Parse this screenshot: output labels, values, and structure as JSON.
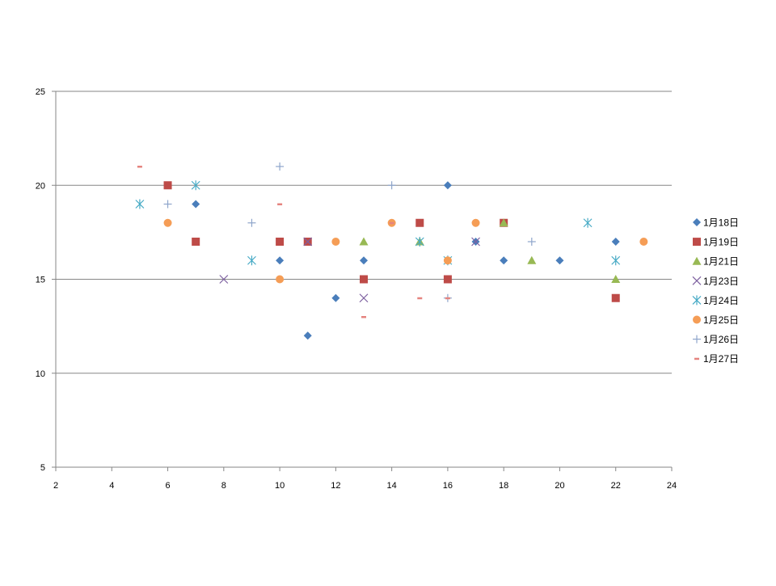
{
  "chart_data": {
    "type": "scatter",
    "title": "",
    "xlabel": "",
    "ylabel": "",
    "xlim": [
      2,
      24
    ],
    "ylim": [
      5,
      25
    ],
    "x_ticks": [
      2,
      4,
      6,
      8,
      10,
      12,
      14,
      16,
      18,
      20,
      22,
      24
    ],
    "y_ticks": [
      5,
      10,
      15,
      20,
      25
    ],
    "grid": "horizontal-major",
    "legend_position": "right",
    "series": [
      {
        "name": "1月18日",
        "marker": "diamond",
        "color": "#4A7EBB",
        "points": [
          [
            7,
            19
          ],
          [
            10,
            16
          ],
          [
            11,
            12
          ],
          [
            12,
            14
          ],
          [
            13,
            16
          ],
          [
            16,
            20
          ],
          [
            17,
            17
          ],
          [
            18,
            16
          ],
          [
            20,
            16
          ],
          [
            22,
            17
          ]
        ]
      },
      {
        "name": "1月19日",
        "marker": "square",
        "color": "#BE4B48",
        "points": [
          [
            6,
            20
          ],
          [
            7,
            17
          ],
          [
            10,
            17
          ],
          [
            11,
            17
          ],
          [
            13,
            15
          ],
          [
            15,
            18
          ],
          [
            16,
            15
          ],
          [
            18,
            18
          ],
          [
            22,
            14
          ]
        ]
      },
      {
        "name": "1月21日",
        "marker": "triangle",
        "color": "#98B954",
        "points": [
          [
            13,
            17
          ],
          [
            15,
            17
          ],
          [
            18,
            18
          ],
          [
            19,
            16
          ],
          [
            22,
            15
          ]
        ]
      },
      {
        "name": "1月23日",
        "marker": "x",
        "color": "#7D60A0",
        "points": [
          [
            8,
            15
          ],
          [
            11,
            17
          ],
          [
            13,
            14
          ],
          [
            17,
            17
          ]
        ]
      },
      {
        "name": "1月24日",
        "marker": "star",
        "color": "#46AAC5",
        "points": [
          [
            5,
            19
          ],
          [
            7,
            20
          ],
          [
            9,
            16
          ],
          [
            15,
            17
          ],
          [
            16,
            16
          ],
          [
            21,
            18
          ],
          [
            22,
            16
          ]
        ]
      },
      {
        "name": "1月25日",
        "marker": "circle",
        "color": "#F59D56",
        "points": [
          [
            6,
            18
          ],
          [
            10,
            15
          ],
          [
            12,
            17
          ],
          [
            14,
            18
          ],
          [
            16,
            16
          ],
          [
            17,
            18
          ],
          [
            23,
            17
          ]
        ]
      },
      {
        "name": "1月26日",
        "marker": "plus",
        "color": "#8EA5CB",
        "points": [
          [
            6,
            19
          ],
          [
            9,
            18
          ],
          [
            10,
            21
          ],
          [
            14,
            20
          ],
          [
            16,
            14
          ],
          [
            19,
            17
          ]
        ]
      },
      {
        "name": "1月27日",
        "marker": "dash",
        "color": "#E5847F",
        "points": [
          [
            5,
            21
          ],
          [
            10,
            19
          ],
          [
            13,
            13
          ],
          [
            14,
            18
          ],
          [
            15,
            14
          ],
          [
            16,
            14
          ]
        ]
      }
    ]
  }
}
